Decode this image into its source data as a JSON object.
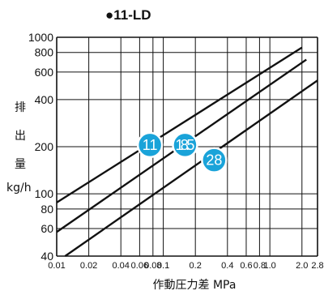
{
  "chart_data": {
    "type": "line",
    "title": "●11-LD",
    "xlabel": "作動圧力差 MPa",
    "ylabel_chars": [
      "排",
      "出",
      "量"
    ],
    "ylabel_unit": "kg/h",
    "x_scale": "log",
    "y_scale": "log",
    "xlim": [
      0.01,
      2.8
    ],
    "ylim": [
      40,
      1000
    ],
    "x_ticks": [
      0.01,
      0.02,
      0.04,
      0.06,
      0.08,
      0.1,
      0.2,
      0.4,
      0.6,
      0.8,
      1.0,
      2.0,
      2.8
    ],
    "x_tick_labels": [
      "0.01",
      "0.02",
      "0.04",
      "0.06",
      "0.08",
      "0.1",
      "0.2",
      "0.4",
      "0.6",
      "0.8",
      "1.0",
      "2.0",
      "2.8"
    ],
    "y_ticks": [
      40,
      60,
      80,
      100,
      200,
      400,
      600,
      800,
      1000
    ],
    "y_tick_labels": [
      "40",
      "60",
      "80",
      "100",
      "200",
      "400",
      "600",
      "800",
      "1000"
    ],
    "grid": true,
    "series": [
      {
        "name": "11",
        "x": [
          0.01,
          2.0
        ],
        "y": [
          88,
          860
        ],
        "label_at": [
          0.075,
          205
        ]
      },
      {
        "name": "18.5",
        "x": [
          0.01,
          2.2
        ],
        "y": [
          57,
          720
        ],
        "label_at": [
          0.16,
          205
        ]
      },
      {
        "name": "28",
        "x": [
          0.012,
          2.8
        ],
        "y": [
          40,
          530
        ],
        "label_at": [
          0.3,
          164
        ]
      }
    ],
    "colors": {
      "line": "#111111",
      "badge": "#1aa3d9",
      "badge_text": "#ffffff",
      "grid": "#111111"
    }
  }
}
